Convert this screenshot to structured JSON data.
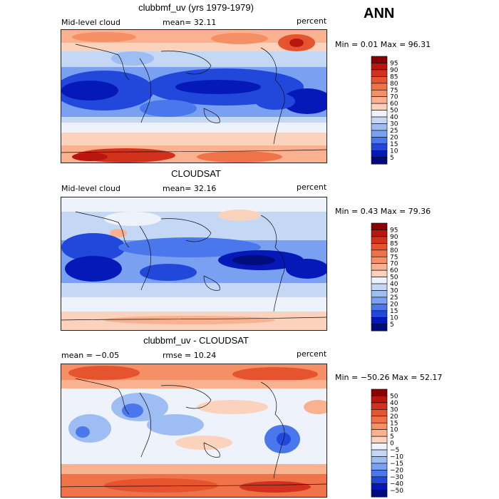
{
  "page": {
    "season": "ANN"
  },
  "chart_data": [
    {
      "type": "heatmap",
      "title": "clubbmf_uv (yrs 1979-1979)",
      "left_label": "Mid-level cloud",
      "center_label": "mean=  32.11",
      "right_label": "percent",
      "minmax": "Min =   0.01 Max =  96.31",
      "colorbar_levels": [
        "95",
        "90",
        "85",
        "80",
        "75",
        "70",
        "60",
        "50",
        "40",
        "30",
        "25",
        "20",
        "15",
        "10",
        "5"
      ]
    },
    {
      "type": "heatmap",
      "title": "CLOUDSAT",
      "left_label": "Mid-level cloud",
      "center_label": "mean=  32.16",
      "right_label": "percent",
      "minmax": "Min =   0.43 Max =  79.36",
      "colorbar_levels": [
        "95",
        "90",
        "85",
        "80",
        "75",
        "70",
        "60",
        "50",
        "40",
        "30",
        "25",
        "20",
        "15",
        "10",
        "5"
      ]
    },
    {
      "type": "heatmap",
      "title": "clubbmf_uv - CLOUDSAT",
      "left_label": "mean =  −0.05",
      "center_label": "rmse =  10.24",
      "right_label": "percent",
      "minmax": "Min = −50.26 Max =  52.17",
      "colorbar_levels": [
        "50",
        "40",
        "30",
        "20",
        "15",
        "10",
        "5",
        "0",
        "−5",
        "−10",
        "−15",
        "−20",
        "−30",
        "−40",
        "−50"
      ]
    }
  ],
  "colors": {
    "bins": [
      "#8c0000",
      "#b8160f",
      "#d2311d",
      "#e5532f",
      "#ef7248",
      "#f59066",
      "#f9b18f",
      "#fbd2bb",
      "#eef2fa",
      "#c4d8f5",
      "#9dbdf3",
      "#7aa0f2",
      "#4a78ec",
      "#2248db",
      "#0519b8",
      "#000c7c"
    ]
  }
}
